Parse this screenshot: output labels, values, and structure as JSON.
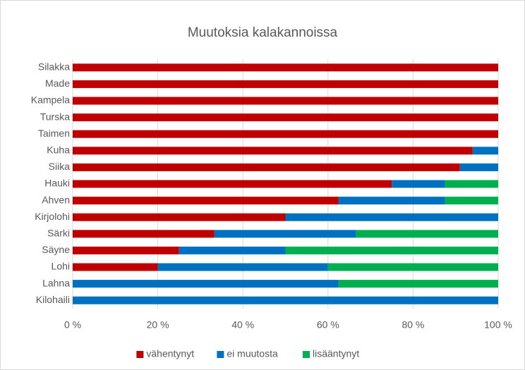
{
  "chart_data": {
    "type": "stacked_barh",
    "title": "Muutoksia kalakannoissa",
    "categories": [
      "Silakka",
      "Made",
      "Kampela",
      "Turska",
      "Taimen",
      "Kuha",
      "Siika",
      "Hauki",
      "Ahven",
      "Kirjolohi",
      "Särki",
      "Säyne",
      "Lohi",
      "Lahna",
      "Kilohaili"
    ],
    "series": [
      {
        "name": "vähentynyt",
        "color": "#c00000",
        "values": [
          100,
          100,
          100,
          100,
          100,
          94,
          91,
          75,
          62.5,
          50,
          33.3,
          25,
          20,
          0,
          0
        ]
      },
      {
        "name": "ei muutosta",
        "color": "#0070c0",
        "values": [
          0,
          0,
          0,
          0,
          0,
          6,
          9,
          12.5,
          25,
          50,
          33.3,
          25,
          40,
          62.5,
          100
        ]
      },
      {
        "name": "lisääntynyt",
        "color": "#00b050",
        "values": [
          0,
          0,
          0,
          0,
          0,
          0,
          0,
          12.5,
          12.5,
          0,
          33.4,
          50,
          40,
          37.5,
          0
        ]
      }
    ],
    "xlim": [
      0,
      100
    ],
    "xticks": [
      {
        "value": 0,
        "label": "0 %"
      },
      {
        "value": 20,
        "label": "20 %"
      },
      {
        "value": 40,
        "label": "40 %"
      },
      {
        "value": 60,
        "label": "60 %"
      },
      {
        "value": 80,
        "label": "80 %"
      },
      {
        "value": 100,
        "label": "100 %"
      }
    ],
    "grid": true,
    "legend": "bottom"
  }
}
